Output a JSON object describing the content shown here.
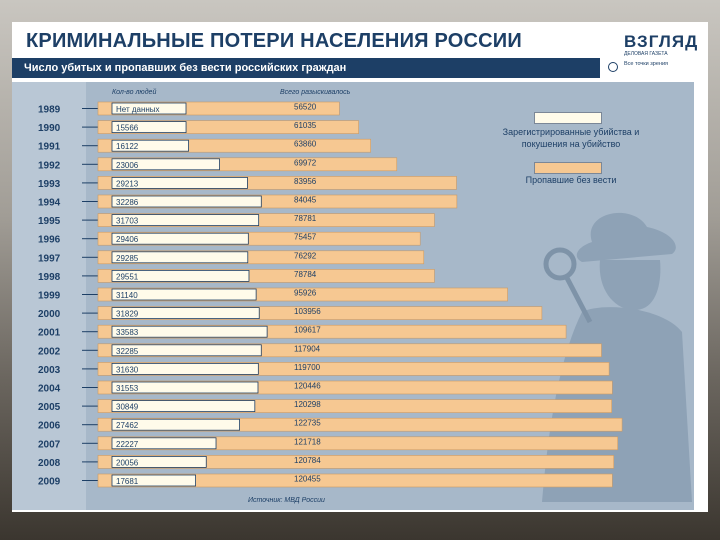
{
  "title": "КРИМИНАЛЬНЫЕ ПОТЕРИ НАСЕЛЕНИЯ РОССИИ",
  "subtitle": "Число убитых и пропавших без вести российских граждан",
  "logo": {
    "name": "ВЗГЛЯД",
    "sub": "ДЕЛОВАЯ ГАЗЕТА",
    "tagline": "Все точки зрения"
  },
  "source": "Источник: МВД России",
  "colors": {
    "navy": "#1d3f66",
    "panel": "#a7b8c9",
    "white_bar": "#fffbea",
    "orange_bar": "#f6c892"
  },
  "chart_data": {
    "type": "bar",
    "orientation": "horizontal",
    "title": "КРИМИНАЛЬНЫЕ ПОТЕРИ НАСЕЛЕНИЯ РОССИИ",
    "subtitle": "Число убитых и пропавших без вести российских граждан",
    "column_headers": [
      "Кол-во людей",
      "Всего разыскивалось"
    ],
    "categories": [
      "1989",
      "1990",
      "1991",
      "1992",
      "1993",
      "1994",
      "1995",
      "1996",
      "1997",
      "1998",
      "1999",
      "2000",
      "2001",
      "2002",
      "2003",
      "2004",
      "2005",
      "2006",
      "2007",
      "2008",
      "2009"
    ],
    "series": [
      {
        "name": "Зарегистрированные убийства и покушения на убийство",
        "values": [
          null,
          15566,
          16122,
          23006,
          29213,
          32286,
          31703,
          29406,
          29285,
          29551,
          31140,
          31829,
          33583,
          32285,
          31630,
          31553,
          30849,
          27462,
          22227,
          20056,
          17681
        ],
        "labels": [
          "Нет данных",
          "15566",
          "16122",
          "23006",
          "29213",
          "32286",
          "31703",
          "29406",
          "29285",
          "29551",
          "31140",
          "31829",
          "33583",
          "32285",
          "31630",
          "31553",
          "30849",
          "27462",
          "22227",
          "20056",
          "17681"
        ]
      },
      {
        "name": "Пропавшие без вести",
        "values": [
          56520,
          61035,
          63860,
          69972,
          83956,
          84045,
          78781,
          75457,
          76292,
          78784,
          95926,
          103956,
          109617,
          117904,
          119700,
          120446,
          120298,
          122735,
          121718,
          120784,
          120455
        ],
        "labels": [
          "56520",
          "61035",
          "63860",
          "69972",
          "83956",
          "84045",
          "78781",
          "75457",
          "76292",
          "78784",
          "95926",
          "103956",
          "109617",
          "117904",
          "119700",
          "120446",
          "120298",
          "122735",
          "121718",
          "120784",
          "120455"
        ]
      }
    ],
    "legend": {
      "placement": "right",
      "items": [
        "Зарегистрированные убийства и покушения на убийство",
        "Пропавшие без вести"
      ]
    },
    "source": "Источник: МВД России"
  }
}
